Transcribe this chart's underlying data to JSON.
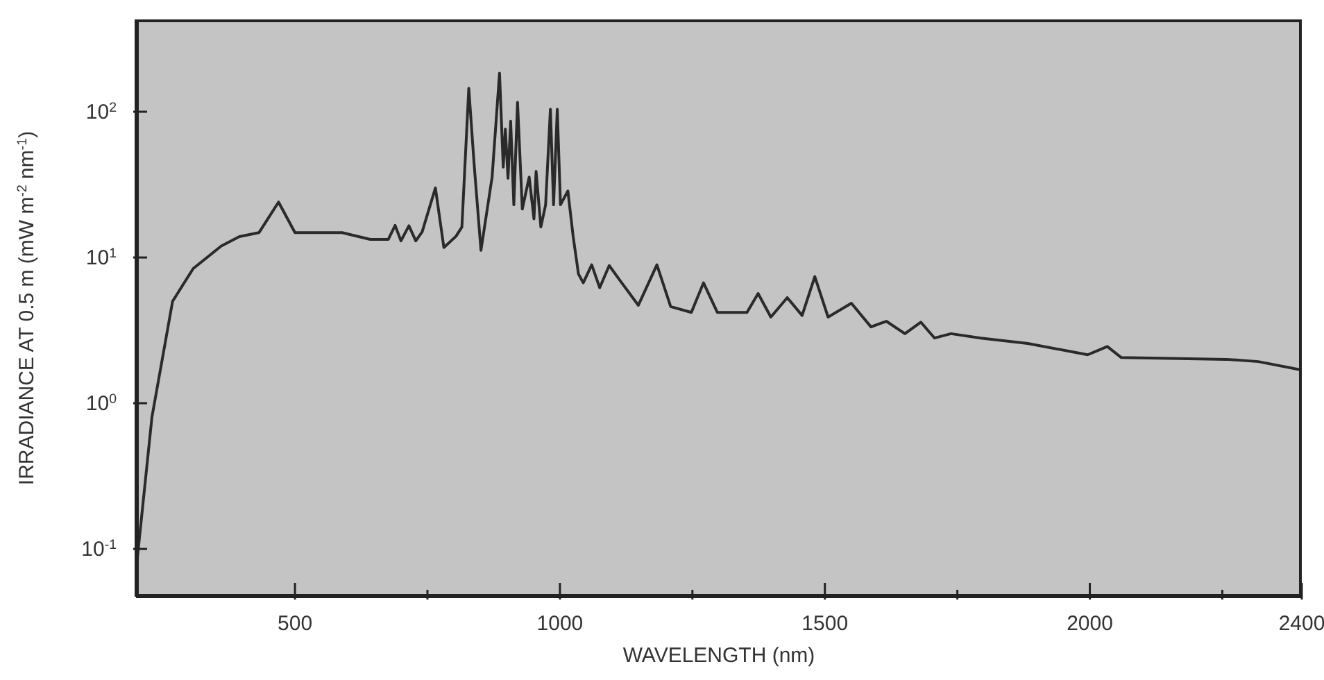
{
  "chart_data": {
    "type": "line",
    "xlabel": "WAVELENGTH (nm)",
    "ylabel": "IRRADIANCE AT 0.5 m (mW m$^{-2}$ nm$^{-1}$)",
    "log": "y",
    "grid": false,
    "marker": "none",
    "line_style": "solid",
    "xlim": [
      200,
      2400
    ],
    "xticks": [
      500,
      {
        "value": 750,
        "label": null
      },
      1000,
      {
        "value": 1250,
        "label": null
      },
      1500,
      {
        "value": 1750,
        "label": null
      },
      2000,
      {
        "value": 2250,
        "label": null
      },
      2400
    ],
    "ylim": [
      0.047,
      430
    ],
    "yticks": [
      {
        "value": 0.1,
        "label": "10$^{-1}$"
      },
      {
        "value": 1,
        "label": "10$^{0}$"
      },
      {
        "value": 10,
        "label": "10$^{1}$"
      },
      {
        "value": 100,
        "label": "10$^{2}$"
      }
    ],
    "series": [
      {
        "color": "#2a2a2a",
        "x": [
          200,
          203,
          230,
          269,
          308,
          361,
          395,
          432,
          469,
          500,
          589,
          642,
          676,
          689,
          700,
          715,
          728,
          740,
          765,
          781,
          804,
          815,
          828,
          838,
          851,
          872,
          886,
          893,
          897,
          902,
          907,
          913,
          920,
          929,
          942,
          951,
          955,
          964,
          973,
          982,
          988,
          995,
          1001,
          1015,
          1025,
          1035,
          1044,
          1060,
          1075,
          1093,
          1114,
          1148,
          1183,
          1209,
          1248,
          1271,
          1297,
          1353,
          1374,
          1398,
          1429,
          1457,
          1481,
          1506,
          1550,
          1587,
          1616,
          1651,
          1681,
          1707,
          1738,
          1794,
          1883,
          1996,
          2033,
          2059,
          2258,
          2318,
          2400
        ],
        "values": [
          0.047,
          0.09,
          0.8,
          5.0,
          8.4,
          12,
          13.9,
          14.8,
          24,
          14.8,
          14.8,
          13.3,
          13.3,
          16.6,
          13,
          16.5,
          13,
          15,
          30,
          11.7,
          14,
          16.2,
          145,
          44,
          11.2,
          35.6,
          184,
          41.7,
          76,
          35,
          86,
          23,
          116,
          21.5,
          35.6,
          18.4,
          39,
          16.2,
          23,
          104,
          23,
          104,
          23,
          28.6,
          13.9,
          7.7,
          6.7,
          8.9,
          6.2,
          8.8,
          6.9,
          4.7,
          8.9,
          4.6,
          4.2,
          6.7,
          4.2,
          4.2,
          5.66,
          3.9,
          5.3,
          4.0,
          7.4,
          3.9,
          4.85,
          3.34,
          3.65,
          3.0,
          3.6,
          2.8,
          3.0,
          2.8,
          2.57,
          2.15,
          2.45,
          2.06,
          2.0,
          1.93,
          1.69
        ]
      }
    ]
  }
}
